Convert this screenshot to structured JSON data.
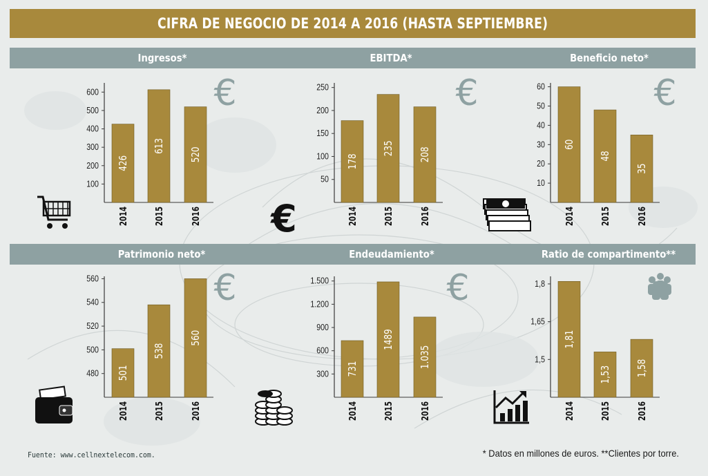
{
  "title": "CIFRA DE NEGOCIO DE 2014 A 2016 (HASTA SEPTIEMBRE)",
  "footer": {
    "source": "Fuente: www.cellnextelecom.com.",
    "notes": "* Datos en millones de euros.   **Clientes por torre."
  },
  "colors": {
    "bar": "#a8893c",
    "header": "#8ea1a2",
    "title_bar": "#a8893c",
    "euro": "#8ea1a2"
  },
  "chart_data": [
    {
      "type": "bar",
      "title": "Ingresos*",
      "categories": [
        "2014",
        "2015",
        "2016"
      ],
      "values": [
        426,
        613,
        520
      ],
      "value_labels": [
        "426",
        "613",
        "520"
      ],
      "ylim": [
        0,
        650
      ],
      "yticks": [
        100,
        200,
        300,
        400,
        500,
        600
      ],
      "ytick_labels": [
        "100",
        "200",
        "300",
        "400",
        "500",
        "600"
      ],
      "icons": [
        "euro-sign-icon",
        "shopping-cart-icon"
      ]
    },
    {
      "type": "bar",
      "title": "EBITDA*",
      "categories": [
        "2014",
        "2015",
        "2016"
      ],
      "values": [
        178,
        235,
        208
      ],
      "value_labels": [
        "178",
        "235",
        "208"
      ],
      "ylim": [
        0,
        260
      ],
      "yticks": [
        50,
        100,
        150,
        200,
        250
      ],
      "ytick_labels": [
        "50",
        "100",
        "150",
        "200",
        "250"
      ],
      "icons": [
        "euro-sign-icon",
        "euro-coin-icon"
      ]
    },
    {
      "type": "bar",
      "title": "Beneficio neto*",
      "categories": [
        "2014",
        "2015",
        "2016"
      ],
      "values": [
        60,
        48,
        35
      ],
      "value_labels": [
        "60",
        "48",
        "35"
      ],
      "ylim": [
        0,
        62
      ],
      "yticks": [
        10,
        20,
        30,
        40,
        50,
        60
      ],
      "ytick_labels": [
        "10",
        "20",
        "30",
        "40",
        "50",
        "60"
      ],
      "icons": [
        "euro-sign-icon",
        "money-stack-icon"
      ]
    },
    {
      "type": "bar",
      "title": "Patrimonio neto*",
      "categories": [
        "2014",
        "2015",
        "2016"
      ],
      "values": [
        501,
        538,
        560
      ],
      "value_labels": [
        "501",
        "538",
        "560"
      ],
      "ylim": [
        460,
        562
      ],
      "yticks": [
        480,
        500,
        520,
        540,
        560
      ],
      "ytick_labels": [
        "480",
        "500",
        "520",
        "540",
        "560"
      ],
      "icons": [
        "euro-sign-icon",
        "wallet-icon"
      ]
    },
    {
      "type": "bar",
      "title": "Endeudamiento*",
      "categories": [
        "2014",
        "2015",
        "2016"
      ],
      "values": [
        731,
        1489,
        1035
      ],
      "value_labels": [
        "731",
        "1489",
        "1.035"
      ],
      "ylim": [
        0,
        1560
      ],
      "yticks": [
        300,
        600,
        900,
        1200,
        1500
      ],
      "ytick_labels": [
        "300",
        "600",
        "900",
        "1.200",
        "1.500"
      ],
      "icons": [
        "euro-sign-icon",
        "coin-stacks-icon"
      ]
    },
    {
      "type": "bar",
      "title": "Ratio de compartimento**",
      "categories": [
        "2014",
        "2015",
        "2016"
      ],
      "values": [
        1.81,
        1.53,
        1.58
      ],
      "value_labels": [
        "1,81",
        "1,53",
        "1,58"
      ],
      "ylim": [
        1.35,
        1.83
      ],
      "yticks": [
        1.5,
        1.65,
        1.8
      ],
      "ytick_labels": [
        "1,5",
        "1,65",
        "1,8"
      ],
      "icons": [
        "people-group-icon",
        "growth-chart-icon"
      ]
    }
  ]
}
